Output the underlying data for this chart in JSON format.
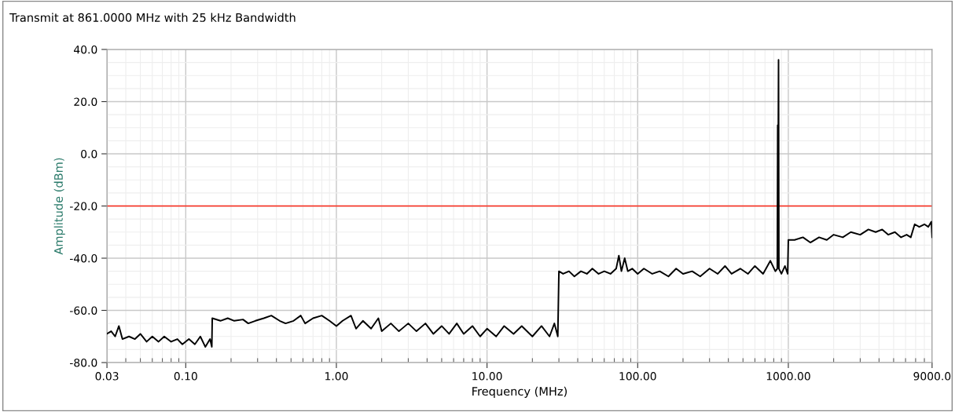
{
  "chart_data": {
    "type": "line",
    "title": "Transmit at 861.0000 MHz with 25 kHz Bandwidth",
    "xlabel": "Frequency (MHz)",
    "ylabel": "Amplitude (dBm)",
    "log": "x",
    "grid": true,
    "legend": false,
    "marker": "none",
    "line_style": "solid",
    "xlim": [
      0.03,
      9000
    ],
    "ylim": [
      -80,
      40
    ],
    "xticks": [
      {
        "value": 0.03,
        "label": "0.03"
      },
      {
        "value": 0.1,
        "label": "0.10"
      },
      {
        "value": 1,
        "label": "1.00"
      },
      {
        "value": 10,
        "label": "10.00"
      },
      {
        "value": 100,
        "label": "100.00"
      },
      {
        "value": 1000,
        "label": "1000.00"
      },
      {
        "value": 9000,
        "label": "9000.0"
      }
    ],
    "yticks": [
      {
        "value": 40,
        "label": "40.0"
      },
      {
        "value": 20,
        "label": "20.0"
      },
      {
        "value": 0,
        "label": "0.0"
      },
      {
        "value": -20,
        "label": "-20.0"
      },
      {
        "value": -40,
        "label": "-40.0"
      },
      {
        "value": -60,
        "label": "-60.0"
      },
      {
        "value": -80,
        "label": "-80.0"
      }
    ],
    "ref_lines": [
      {
        "axis": "y",
        "value": -20,
        "color": "#ff2a1a"
      }
    ],
    "x": [
      0.03,
      0.032,
      0.034,
      0.036,
      0.038,
      0.042,
      0.046,
      0.05,
      0.055,
      0.06,
      0.066,
      0.072,
      0.08,
      0.088,
      0.095,
      0.105,
      0.115,
      0.125,
      0.135,
      0.145,
      0.149,
      0.15,
      0.17,
      0.19,
      0.21,
      0.24,
      0.26,
      0.29,
      0.33,
      0.37,
      0.42,
      0.46,
      0.52,
      0.58,
      0.62,
      0.7,
      0.8,
      0.9,
      1.0,
      1.1,
      1.25,
      1.35,
      1.5,
      1.7,
      1.9,
      2.0,
      2.3,
      2.6,
      3.0,
      3.4,
      3.9,
      4.4,
      5.0,
      5.6,
      6.3,
      7.0,
      8.0,
      9.0,
      10,
      11.5,
      13,
      15,
      17,
      20,
      23,
      26,
      28,
      29.5,
      30,
      32,
      35,
      38,
      42,
      46,
      50,
      55,
      60,
      66,
      72,
      75,
      78,
      82,
      86,
      92,
      100,
      110,
      125,
      140,
      160,
      180,
      200,
      230,
      260,
      300,
      340,
      380,
      420,
      480,
      540,
      600,
      680,
      760,
      820,
      845,
      850,
      858,
      861,
      866,
      900,
      950,
      990,
      1000,
      1100,
      1250,
      1400,
      1600,
      1800,
      2000,
      2300,
      2600,
      3000,
      3400,
      3800,
      4200,
      4600,
      5100,
      5600,
      6100,
      6500,
      6900,
      7400,
      8000,
      8500,
      8900,
      9000
    ],
    "series": [
      {
        "color": "#000000",
        "values": [
          -69,
          -68,
          -70,
          -66,
          -71,
          -70,
          -71,
          -69,
          -72,
          -70,
          -72,
          -70,
          -72,
          -71,
          -73,
          -71,
          -73,
          -70,
          -74,
          -71,
          -74,
          -63,
          -64,
          -63,
          -64,
          -63.5,
          -65,
          -64,
          -63,
          -62,
          -64,
          -65,
          -64,
          -62,
          -65,
          -63,
          -62,
          -64,
          -66,
          -64,
          -62,
          -67,
          -64,
          -67,
          -63,
          -68,
          -65,
          -68,
          -65,
          -68,
          -65,
          -69,
          -66,
          -69,
          -65,
          -69,
          -66,
          -70,
          -67,
          -70,
          -66,
          -69,
          -66,
          -70,
          -66,
          -70,
          -65,
          -70,
          -45,
          -46,
          -45,
          -47,
          -45,
          -46,
          -44,
          -46,
          -45,
          -46,
          -44,
          -39,
          -45,
          -40,
          -45,
          -44,
          -46,
          -44,
          -46,
          -45,
          -47,
          -44,
          -46,
          -45,
          -47,
          -44,
          -46,
          -43,
          -46,
          -44,
          -46,
          -43,
          -46,
          -41,
          -45,
          -44,
          11,
          11,
          36,
          -44,
          -46,
          -43,
          -46,
          -33,
          -33,
          -32,
          -34,
          -32,
          -33,
          -31,
          -32,
          -30,
          -31,
          -29,
          -30,
          -29,
          -31,
          -30,
          -32,
          -31,
          -32,
          -27,
          -28,
          -27,
          -28,
          -26,
          -32
        ]
      }
    ]
  }
}
